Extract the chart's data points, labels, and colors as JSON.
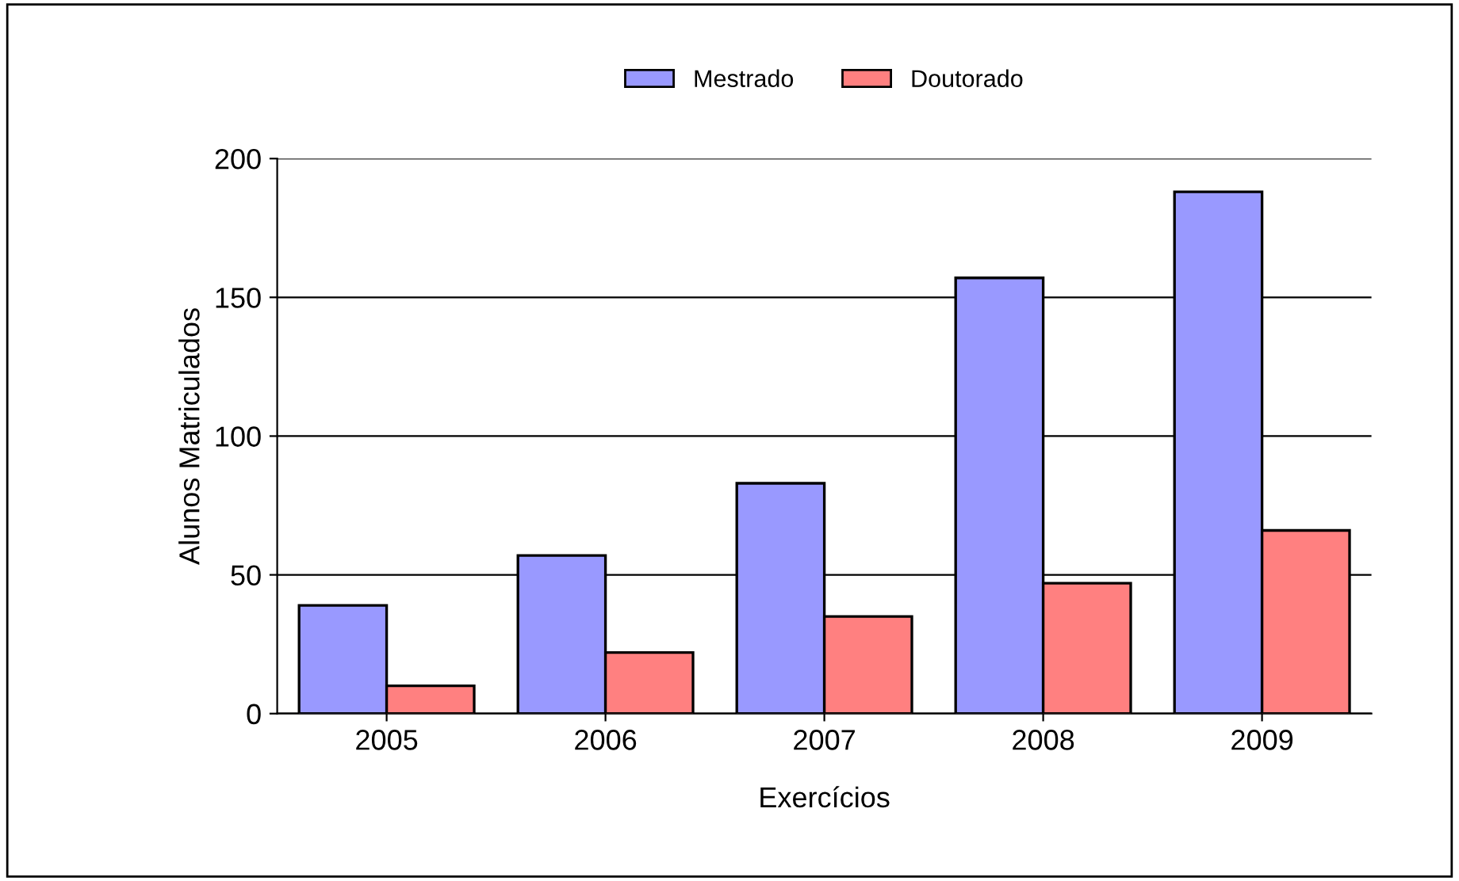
{
  "chart_data": {
    "type": "bar",
    "xlabel": "Exercícios",
    "ylabel": "Alunos Matriculados",
    "categories": [
      "2005",
      "2006",
      "2007",
      "2008",
      "2009"
    ],
    "series": [
      {
        "name": "Mestrado",
        "color": "#9999ff",
        "values": [
          39,
          57,
          83,
          157,
          188
        ]
      },
      {
        "name": "Doutorado",
        "color": "#ff8080",
        "values": [
          10,
          22,
          35,
          47,
          66
        ]
      }
    ],
    "ylim": [
      0,
      200
    ],
    "yticks": [
      0,
      50,
      100,
      150,
      200
    ],
    "grid": "y",
    "legend": "top"
  }
}
